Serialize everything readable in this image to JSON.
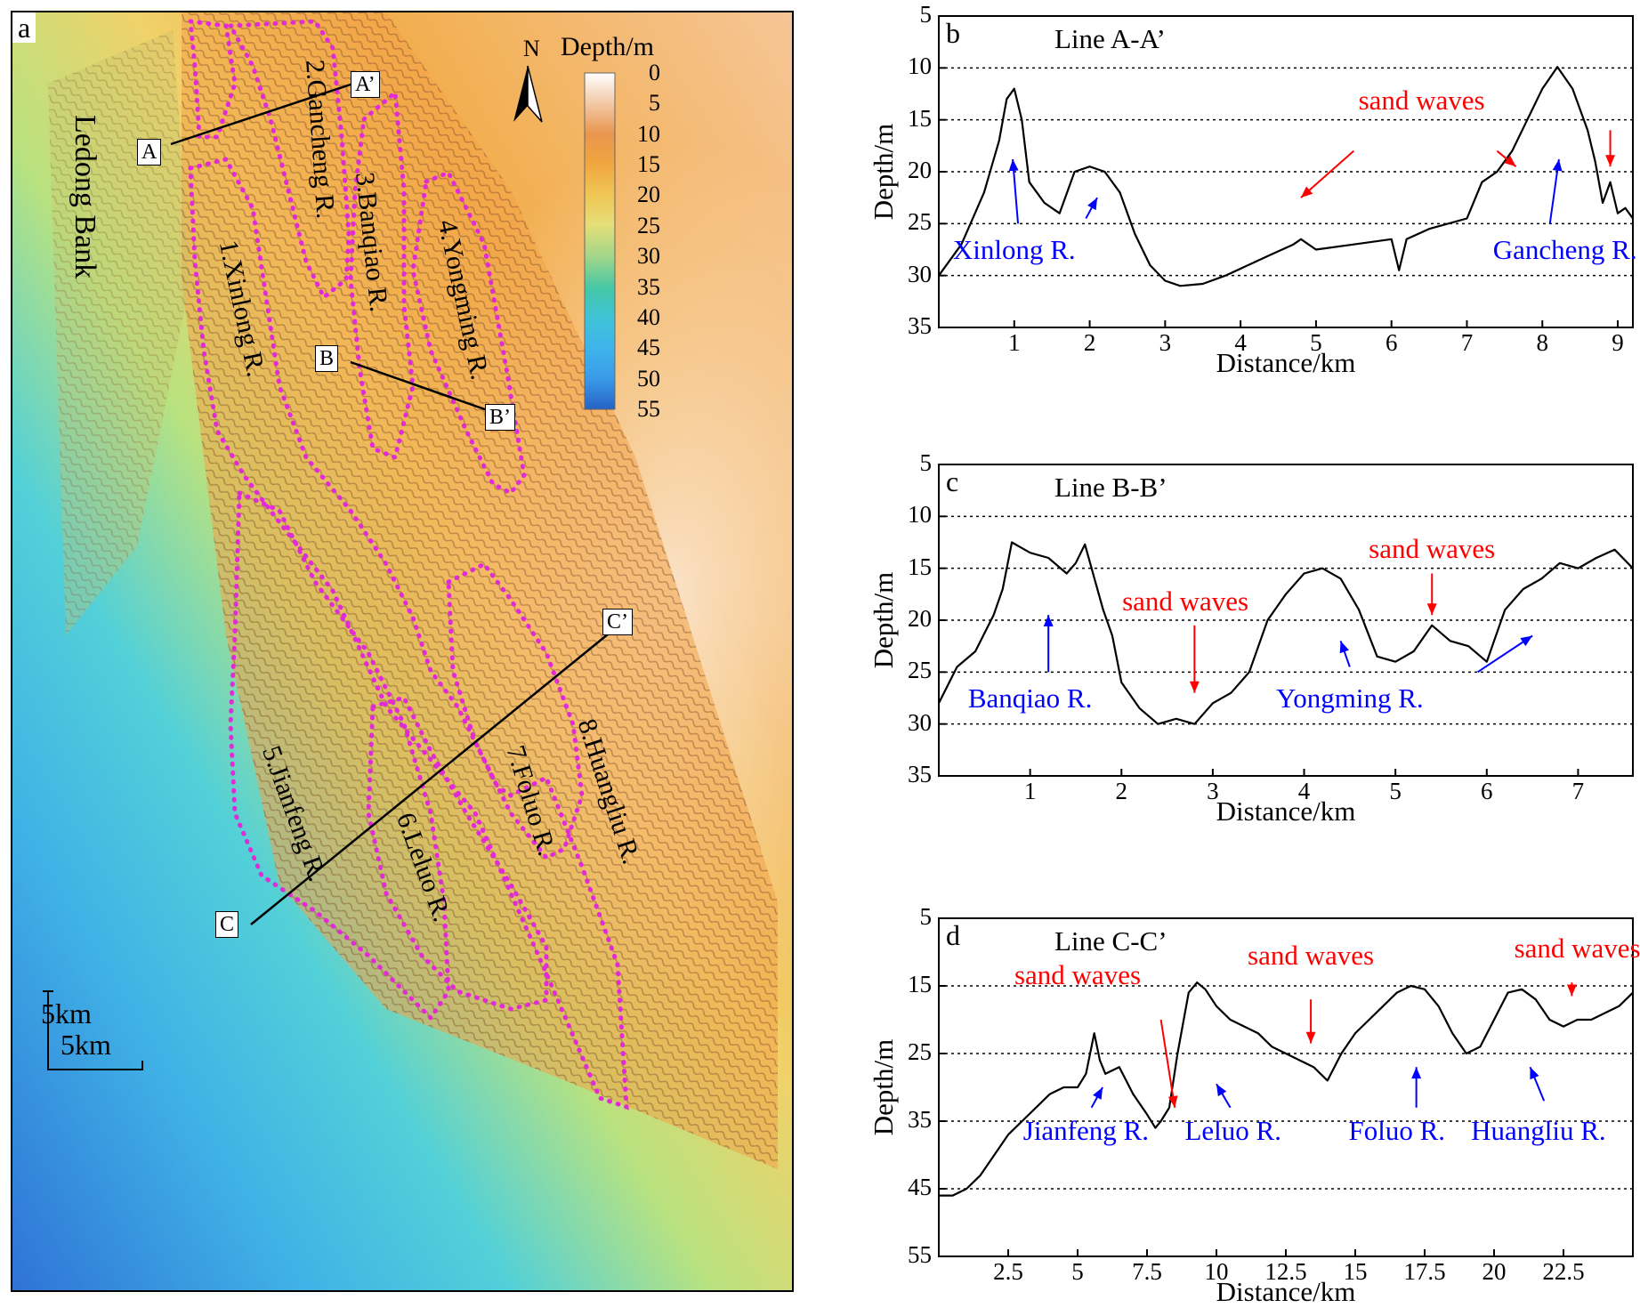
{
  "colors": {
    "ridge_outline": "#e02bd6",
    "profile_line": "#000000",
    "sand_wave_annotation": "#ff0000",
    "ridge_annotation": "#0000ff",
    "depth_scale": [
      "#ffffff",
      "#f3c9a6",
      "#e9964f",
      "#f0a63f",
      "#f0d46b",
      "#9fd68a",
      "#45c7a6",
      "#3fc3d8",
      "#3fb3ea",
      "#3a9ae8",
      "#2f7ed8",
      "#2563c6"
    ]
  },
  "map": {
    "panel_letter": "a",
    "north_label": "N",
    "legend_title": "Depth/m",
    "legend_ticks": [
      "0",
      "5",
      "10",
      "15",
      "20",
      "25",
      "30",
      "35",
      "40",
      "45",
      "50",
      "55"
    ],
    "bank_label": "Ledong Bank",
    "ridges": [
      "1.Xinlong R.",
      "2.Gancheng R.",
      "3.Banqiao R.",
      "4.Yongming R.",
      "5.Jianfeng R.",
      "6.Leluo R.",
      "7.Foluo R.",
      "8.Huangliu R."
    ],
    "line_ends": [
      "A",
      "A’",
      "B",
      "B’",
      "C",
      "C’"
    ],
    "scale_vertical": "5km",
    "scale_horizontal": "5km",
    "icons": [
      "north-arrow-icon",
      "scale-bar-icon"
    ]
  },
  "chart_data": [
    {
      "type": "line",
      "panel": "b",
      "title": "Line A-A’",
      "xlabel": "Distance/km",
      "ylabel": "Depth/m",
      "xlim": [
        0,
        9.2
      ],
      "ylim": [
        35,
        5
      ],
      "xticks": [
        "1",
        "2",
        "3",
        "4",
        "5",
        "6",
        "7",
        "8",
        "9"
      ],
      "yticks": [
        "5",
        "10",
        "15",
        "20",
        "25",
        "30",
        "35"
      ],
      "grid_dotted_at": [
        10,
        15,
        20,
        25,
        30
      ],
      "series": [
        {
          "x": [
            0,
            0.3,
            0.6,
            0.8,
            0.9,
            1.0,
            1.1,
            1.2,
            1.4,
            1.6,
            1.8,
            2.0,
            2.2,
            2.4,
            2.6,
            2.8,
            3.0,
            3.2,
            3.5,
            3.8,
            4.1,
            4.4,
            4.7,
            4.8,
            5.0,
            5.5,
            6.0,
            6.1,
            6.2,
            6.5,
            7.0,
            7.2,
            7.4,
            7.6,
            7.8,
            8.0,
            8.2,
            8.4,
            8.6,
            8.7,
            8.8,
            8.9,
            9.0,
            9.1,
            9.2
          ],
          "y": [
            30,
            27,
            22,
            17,
            13,
            12,
            15,
            21,
            23,
            24,
            20,
            19.5,
            20,
            22,
            26,
            29,
            30.5,
            31,
            30.8,
            30,
            29,
            28,
            27,
            26.5,
            27.5,
            27,
            26.5,
            29.5,
            26.5,
            25.5,
            24.5,
            21,
            20,
            18,
            15,
            12,
            9.9,
            12,
            16,
            19,
            23,
            21,
            24,
            23.5,
            24.5
          ]
        }
      ],
      "annotations_red": [
        "sand waves"
      ],
      "annotations_blue": [
        "Xinlong R.",
        "Gancheng R."
      ]
    },
    {
      "type": "line",
      "panel": "c",
      "title": "Line B-B’",
      "xlabel": "Distance/km",
      "ylabel": "Depth/m",
      "xlim": [
        0,
        7.6
      ],
      "ylim": [
        35,
        5
      ],
      "xticks": [
        "1",
        "2",
        "3",
        "4",
        "5",
        "6",
        "7"
      ],
      "yticks": [
        "5",
        "10",
        "15",
        "20",
        "25",
        "30",
        "35"
      ],
      "grid_dotted_at": [
        10,
        15,
        20,
        25,
        30
      ],
      "series": [
        {
          "x": [
            0,
            0.2,
            0.4,
            0.6,
            0.7,
            0.8,
            1.0,
            1.2,
            1.4,
            1.5,
            1.6,
            1.8,
            1.9,
            2.0,
            2.2,
            2.4,
            2.6,
            2.8,
            3.0,
            3.2,
            3.4,
            3.6,
            3.8,
            4.0,
            4.2,
            4.4,
            4.6,
            4.8,
            5.0,
            5.2,
            5.4,
            5.6,
            5.8,
            6.0,
            6.2,
            6.4,
            6.6,
            6.8,
            7.0,
            7.2,
            7.4,
            7.6
          ],
          "y": [
            28,
            24.5,
            23,
            19.5,
            17,
            12.5,
            13.5,
            14,
            15.5,
            14.5,
            12.7,
            19,
            21.5,
            26,
            28.5,
            30,
            29.5,
            30,
            28,
            27,
            25,
            20,
            17.5,
            15.5,
            15,
            16,
            19,
            23.5,
            24,
            23,
            20.5,
            22,
            22.5,
            24,
            19,
            17,
            16,
            14.5,
            15,
            14,
            13.2,
            15
          ]
        }
      ],
      "annotations_red": [
        "sand waves",
        "sand waves"
      ],
      "annotations_blue": [
        "Banqiao R.",
        "Yongming  R."
      ]
    },
    {
      "type": "line",
      "panel": "d",
      "title": "Line C-C’",
      "xlabel": "Distance/km",
      "ylabel": "Depth/m",
      "xlim": [
        0,
        25
      ],
      "ylim": [
        55,
        5
      ],
      "xticks": [
        "2.5",
        "5",
        "7.5",
        "10",
        "12.5",
        "15",
        "17.5",
        "20",
        "22.5"
      ],
      "yticks": [
        "5",
        "15",
        "25",
        "35",
        "45",
        "55"
      ],
      "grid_dotted_at": [
        15,
        25,
        35,
        45
      ],
      "series": [
        {
          "x": [
            0,
            0.5,
            1.0,
            1.5,
            2.0,
            2.5,
            3.0,
            3.5,
            4.0,
            4.5,
            5.0,
            5.3,
            5.6,
            5.8,
            6.0,
            6.5,
            7.0,
            7.5,
            7.8,
            8.0,
            8.3,
            8.6,
            9.0,
            9.3,
            9.6,
            10.0,
            10.5,
            11.0,
            11.5,
            12.0,
            12.5,
            13.0,
            13.5,
            14.0,
            14.5,
            15.0,
            15.5,
            16.0,
            16.5,
            17.0,
            17.5,
            18.0,
            18.5,
            19.0,
            19.5,
            20.0,
            20.5,
            21.0,
            21.5,
            22.0,
            22.5,
            23.0,
            23.5,
            24.0,
            24.5,
            25.0
          ],
          "y": [
            46,
            46,
            45,
            43,
            40,
            37,
            35,
            33,
            31,
            30,
            30,
            28,
            22,
            26,
            28,
            27,
            31,
            34,
            36,
            35,
            33,
            25,
            16,
            14.5,
            15.5,
            18,
            20,
            21,
            22,
            24,
            25,
            26,
            27,
            29,
            25,
            22,
            20,
            18,
            16,
            15,
            15.5,
            18,
            22,
            25,
            24,
            20,
            16,
            15.5,
            17,
            20,
            21,
            20,
            20,
            19,
            18,
            16
          ]
        }
      ],
      "annotations_red": [
        "sand waves",
        "sand waves",
        "sand waves"
      ],
      "annotations_blue": [
        "Jianfeng R.",
        "Leluo  R.",
        "Foluo R.",
        "Huangliu R."
      ]
    }
  ]
}
